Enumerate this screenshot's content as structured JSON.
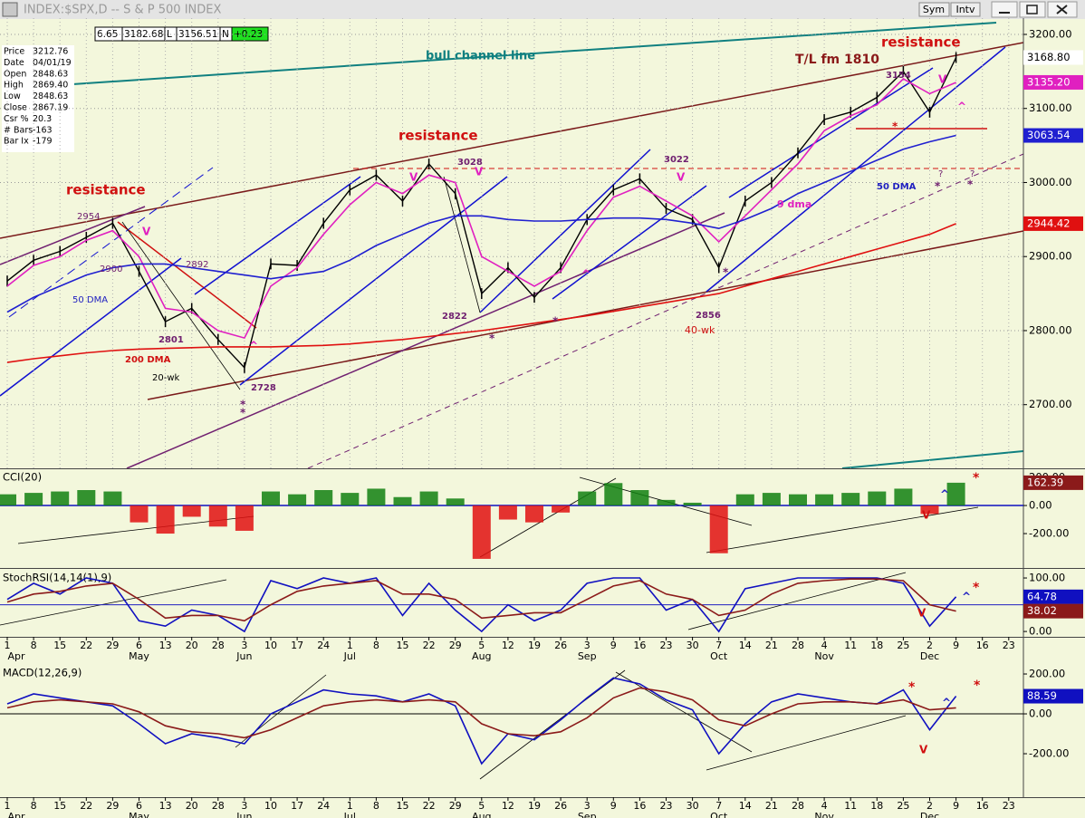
{
  "window": {
    "title": "INDEX:$SPX,D -- S & P 500 INDEX",
    "buttons": [
      "Sym",
      "Intv"
    ]
  },
  "quote": [
    "6.65",
    "3182.68",
    "L",
    "3156.51",
    "N",
    "+0.23"
  ],
  "info": [
    {
      "label": "Price",
      "value": "3212.76"
    },
    {
      "label": "Date",
      "value": "04/01/19"
    },
    {
      "label": "Open",
      "value": "2848.63"
    },
    {
      "label": "High",
      "value": "2869.40"
    },
    {
      "label": "Low",
      "value": "2848.63"
    },
    {
      "label": "Close",
      "value": "2867.19"
    },
    {
      "label": "Csr %",
      "value": "20.3"
    },
    {
      "label": "# Bars",
      "value": "-163"
    },
    {
      "label": "Bar Ix",
      "value": "-179"
    }
  ],
  "annotations": [
    {
      "text": "resistance",
      "color": "#d01010"
    },
    {
      "text": "resistance",
      "color": "#d01010"
    },
    {
      "text": "resistance",
      "color": "#d01010"
    },
    {
      "text": "bull channel line",
      "color": "#108080"
    },
    {
      "text": "T/L fm 1810",
      "color": "#8b1a1a"
    },
    {
      "text": "2954",
      "color": "#702070"
    },
    {
      "text": "2900",
      "color": "#702070"
    },
    {
      "text": "2892",
      "color": "#702070"
    },
    {
      "text": "2801",
      "color": "#702070"
    },
    {
      "text": "2728",
      "color": "#702070"
    },
    {
      "text": "2822",
      "color": "#702070"
    },
    {
      "text": "3028",
      "color": "#702070"
    },
    {
      "text": "3022",
      "color": "#702070"
    },
    {
      "text": "2856",
      "color": "#702070"
    },
    {
      "text": "3154",
      "color": "#702070"
    },
    {
      "text": "40-wk",
      "color": "#d01010"
    },
    {
      "text": "50 DMA",
      "color": "#2020c0"
    },
    {
      "text": "50 DMA",
      "color": "#2020c0"
    },
    {
      "text": "200 DMA",
      "color": "#d01010"
    },
    {
      "text": "20-wk",
      "color": "#000000"
    },
    {
      "text": "9 dma",
      "color": "#e020c0"
    },
    {
      "text": "V",
      "color": "#e020c0"
    },
    {
      "text": "V",
      "color": "#e020c0"
    },
    {
      "text": "V",
      "color": "#e020c0"
    },
    {
      "text": "V",
      "color": "#e020c0"
    },
    {
      "text": "V",
      "color": "#e020c0"
    },
    {
      "text": "^",
      "color": "#e020c0"
    },
    {
      "text": "^",
      "color": "#e020c0"
    },
    {
      "text": "^",
      "color": "#e020c0"
    },
    {
      "text": "*",
      "color": "#702070"
    },
    {
      "text": "*",
      "color": "#702070"
    },
    {
      "text": "*",
      "color": "#702070"
    },
    {
      "text": "*",
      "color": "#702070"
    },
    {
      "text": "*",
      "color": "#702070"
    },
    {
      "text": "*",
      "color": "#702070"
    },
    {
      "text": "*",
      "color": "#702070"
    },
    {
      "text": "*",
      "color": "#d01010"
    },
    {
      "text": "?",
      "color": "#702070"
    },
    {
      "text": "?",
      "color": "#702070"
    },
    {
      "text": "V",
      "color": "#d01010"
    },
    {
      "text": "^",
      "color": "#2020c0"
    },
    {
      "text": "*",
      "color": "#d01010"
    },
    {
      "text": "V",
      "color": "#d01010"
    },
    {
      "text": "^",
      "color": "#2020c0"
    },
    {
      "text": "*",
      "color": "#d01010"
    },
    {
      "text": "*",
      "color": "#d01010"
    },
    {
      "text": "V",
      "color": "#d01010"
    },
    {
      "text": "^",
      "color": "#2020c0"
    },
    {
      "text": "*",
      "color": "#d01010"
    }
  ],
  "chart_data": [
    {
      "type": "line",
      "grid": true,
      "ylim": [
        2614,
        3222
      ],
      "yticks": [
        {
          "value": 2700,
          "label": "2700.00"
        },
        {
          "value": 2800,
          "label": "2800.00"
        },
        {
          "value": 2900,
          "label": "2900.00"
        },
        {
          "value": 3000,
          "label": "3000.00"
        },
        {
          "value": 3100,
          "label": "3100.00"
        },
        {
          "value": 3200,
          "label": "3200.00"
        }
      ],
      "series": [
        {
          "color": "#000000",
          "tag": "3168.80",
          "values": [
            2867,
            2895,
            2907,
            2926,
            2945,
            2880,
            2812,
            2830,
            2788,
            2750,
            2890,
            2888,
            2945,
            2990,
            3010,
            2975,
            3025,
            2985,
            2850,
            2885,
            2845,
            2885,
            2950,
            2990,
            3005,
            2965,
            2950,
            2885,
            2975,
            3000,
            3040,
            3085,
            3095,
            3115,
            3150,
            3095,
            3168.8,
            null,
            null
          ]
        },
        {
          "color": "#e020c0",
          "tag": "3135.20",
          "values": [
            2860,
            2888,
            2900,
            2922,
            2935,
            2900,
            2830,
            2825,
            2800,
            2790,
            2860,
            2885,
            2930,
            2970,
            3000,
            2985,
            3010,
            3000,
            2900,
            2880,
            2860,
            2880,
            2935,
            2980,
            2995,
            2975,
            2955,
            2920,
            2955,
            2990,
            3025,
            3070,
            3090,
            3105,
            3140,
            3120,
            3135.2,
            null,
            null
          ]
        },
        {
          "color": "#2020d0",
          "tag": "3063.54",
          "values": [
            2825,
            2845,
            2860,
            2875,
            2885,
            2890,
            2890,
            2885,
            2880,
            2875,
            2870,
            2875,
            2880,
            2895,
            2915,
            2930,
            2945,
            2955,
            2955,
            2950,
            2948,
            2948,
            2950,
            2952,
            2952,
            2950,
            2945,
            2938,
            2950,
            2965,
            2985,
            3000,
            3015,
            3030,
            3045,
            3055,
            3063.54,
            null,
            null
          ]
        },
        {
          "color": "#e01010",
          "tag": "2944.42",
          "values": [
            2757,
            2762,
            2766,
            2770,
            2773,
            2775,
            2776,
            2777,
            2778,
            2778,
            2778,
            2779,
            2780,
            2782,
            2785,
            2788,
            2792,
            2796,
            2800,
            2805,
            2810,
            2815,
            2820,
            2826,
            2832,
            2838,
            2844,
            2850,
            2860,
            2870,
            2880,
            2890,
            2900,
            2910,
            2920,
            2930,
            2944.42,
            null,
            null
          ]
        }
      ]
    },
    {
      "type": "bar",
      "title": "CCI(20)",
      "colors": [
        "#108010",
        "#e01010"
      ],
      "tag": "162.39",
      "tag_color": "#8b1a1a",
      "ylim": [
        -445,
        252
      ],
      "yticks": [
        {
          "value": 200,
          "label": "200.00"
        },
        {
          "value": 0,
          "label": "0.00"
        },
        {
          "value": -200,
          "label": "-200.00"
        }
      ],
      "values": [
        80,
        90,
        100,
        110,
        100,
        -120,
        -200,
        -80,
        -150,
        -180,
        100,
        80,
        110,
        90,
        120,
        60,
        100,
        50,
        -380,
        -100,
        -120,
        -50,
        100,
        160,
        110,
        40,
        20,
        -340,
        80,
        90,
        80,
        80,
        90,
        100,
        120,
        -60,
        162.39,
        null,
        null
      ]
    },
    {
      "type": "line",
      "title": "StochRSI(14,14(1),9)",
      "reference_line": 50,
      "ylim": [
        -10,
        113.6
      ],
      "yticks": [
        {
          "value": 100,
          "label": "100.00"
        },
        {
          "value": 0,
          "label": "0.00"
        }
      ],
      "categories": [
        "1",
        "8",
        "15",
        "22",
        "29",
        "6",
        "13",
        "20",
        "28",
        "3",
        "10",
        "17",
        "24",
        "1",
        "8",
        "15",
        "22",
        "29",
        "5",
        "12",
        "19",
        "26",
        "3",
        "9",
        "16",
        "23",
        "30",
        "7",
        "14",
        "21",
        "28",
        "4",
        "11",
        "18",
        "25",
        "2",
        "9",
        "16",
        "23"
      ],
      "months": [
        "Apr",
        "May",
        "Jun",
        "Jul",
        "Aug",
        "Sep",
        "Oct",
        "Nov",
        "Dec"
      ],
      "series": [
        {
          "color": "#1010c0",
          "tag": "64.78",
          "values": [
            60,
            90,
            70,
            100,
            90,
            20,
            10,
            40,
            30,
            0,
            95,
            80,
            100,
            90,
            100,
            30,
            90,
            40,
            0,
            50,
            20,
            40,
            90,
            100,
            100,
            40,
            60,
            0,
            80,
            90,
            100,
            100,
            100,
            100,
            90,
            10,
            64.78,
            null,
            null
          ]
        },
        {
          "color": "#8b1a1a",
          "tag": "38.02",
          "values": [
            55,
            70,
            75,
            85,
            90,
            60,
            25,
            30,
            30,
            20,
            50,
            75,
            85,
            90,
            95,
            70,
            70,
            60,
            25,
            30,
            35,
            35,
            60,
            85,
            95,
            70,
            60,
            30,
            40,
            70,
            90,
            95,
            98,
            98,
            95,
            50,
            38.02,
            null,
            null
          ]
        }
      ]
    },
    {
      "type": "line",
      "title": "MACD(12,26,9)",
      "reference_line": 0,
      "ylim": [
        -418,
        241
      ],
      "yticks": [
        {
          "value": 200,
          "label": "200.00"
        },
        {
          "value": 0,
          "label": "0.00"
        },
        {
          "value": -200,
          "label": "-200.00"
        }
      ],
      "categories": [
        "1",
        "8",
        "15",
        "22",
        "29",
        "6",
        "13",
        "20",
        "28",
        "3",
        "10",
        "17",
        "24",
        "1",
        "8",
        "15",
        "22",
        "29",
        "5",
        "12",
        "19",
        "26",
        "3",
        "9",
        "16",
        "23",
        "30",
        "7",
        "14",
        "21",
        "28",
        "4",
        "11",
        "18",
        "25",
        "2",
        "9",
        "16",
        "23"
      ],
      "months": [
        "Apr",
        "May",
        "Jun",
        "Jul",
        "Aug",
        "Sep",
        "Oct",
        "Nov",
        "Dec"
      ],
      "series": [
        {
          "color": "#1010c0",
          "tag": "88.59",
          "values": [
            50,
            100,
            80,
            60,
            40,
            -50,
            -150,
            -100,
            -120,
            -150,
            0,
            60,
            120,
            100,
            90,
            60,
            100,
            40,
            -250,
            -100,
            -130,
            -30,
            80,
            180,
            150,
            70,
            20,
            -200,
            -50,
            60,
            100,
            80,
            60,
            50,
            120,
            -80,
            88.59,
            null,
            null
          ]
        },
        {
          "color": "#8b1a1a",
          "values": [
            30,
            60,
            70,
            60,
            50,
            10,
            -60,
            -90,
            -100,
            -120,
            -80,
            -20,
            40,
            60,
            70,
            60,
            70,
            60,
            -50,
            -100,
            -110,
            -90,
            -20,
            80,
            130,
            110,
            70,
            -30,
            -60,
            0,
            50,
            60,
            60,
            50,
            70,
            20,
            30,
            null,
            null
          ]
        }
      ]
    }
  ]
}
